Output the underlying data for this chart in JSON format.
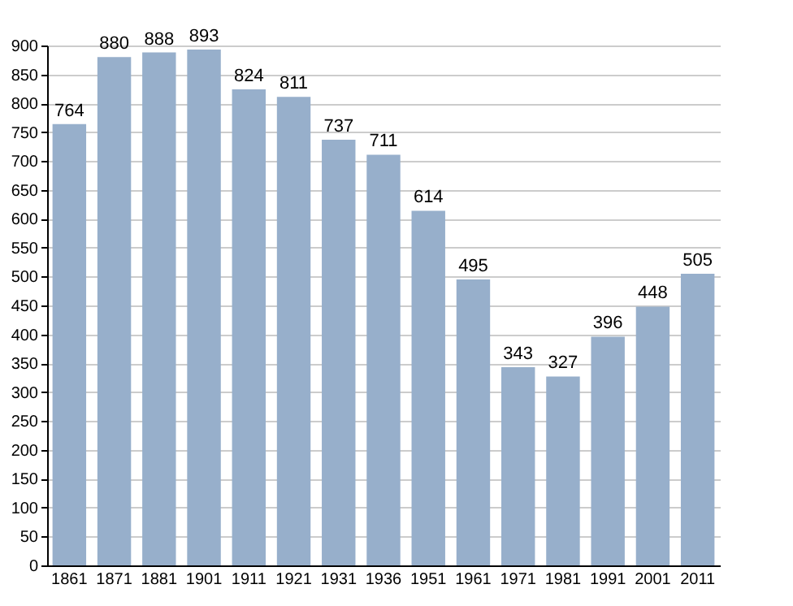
{
  "chart_data": {
    "type": "bar",
    "categories": [
      "1861",
      "1871",
      "1881",
      "1901",
      "1911",
      "1921",
      "1931",
      "1936",
      "1951",
      "1961",
      "1971",
      "1981",
      "1991",
      "2001",
      "2011"
    ],
    "values": [
      764,
      880,
      888,
      893,
      824,
      811,
      737,
      711,
      614,
      495,
      343,
      327,
      396,
      448,
      505
    ],
    "color": "#97afcb",
    "ylim": [
      0,
      900
    ],
    "yticks": [
      0,
      50,
      100,
      150,
      200,
      250,
      300,
      350,
      400,
      450,
      500,
      550,
      600,
      650,
      700,
      750,
      800,
      850,
      900
    ],
    "grid": "y",
    "data_labels": true
  }
}
